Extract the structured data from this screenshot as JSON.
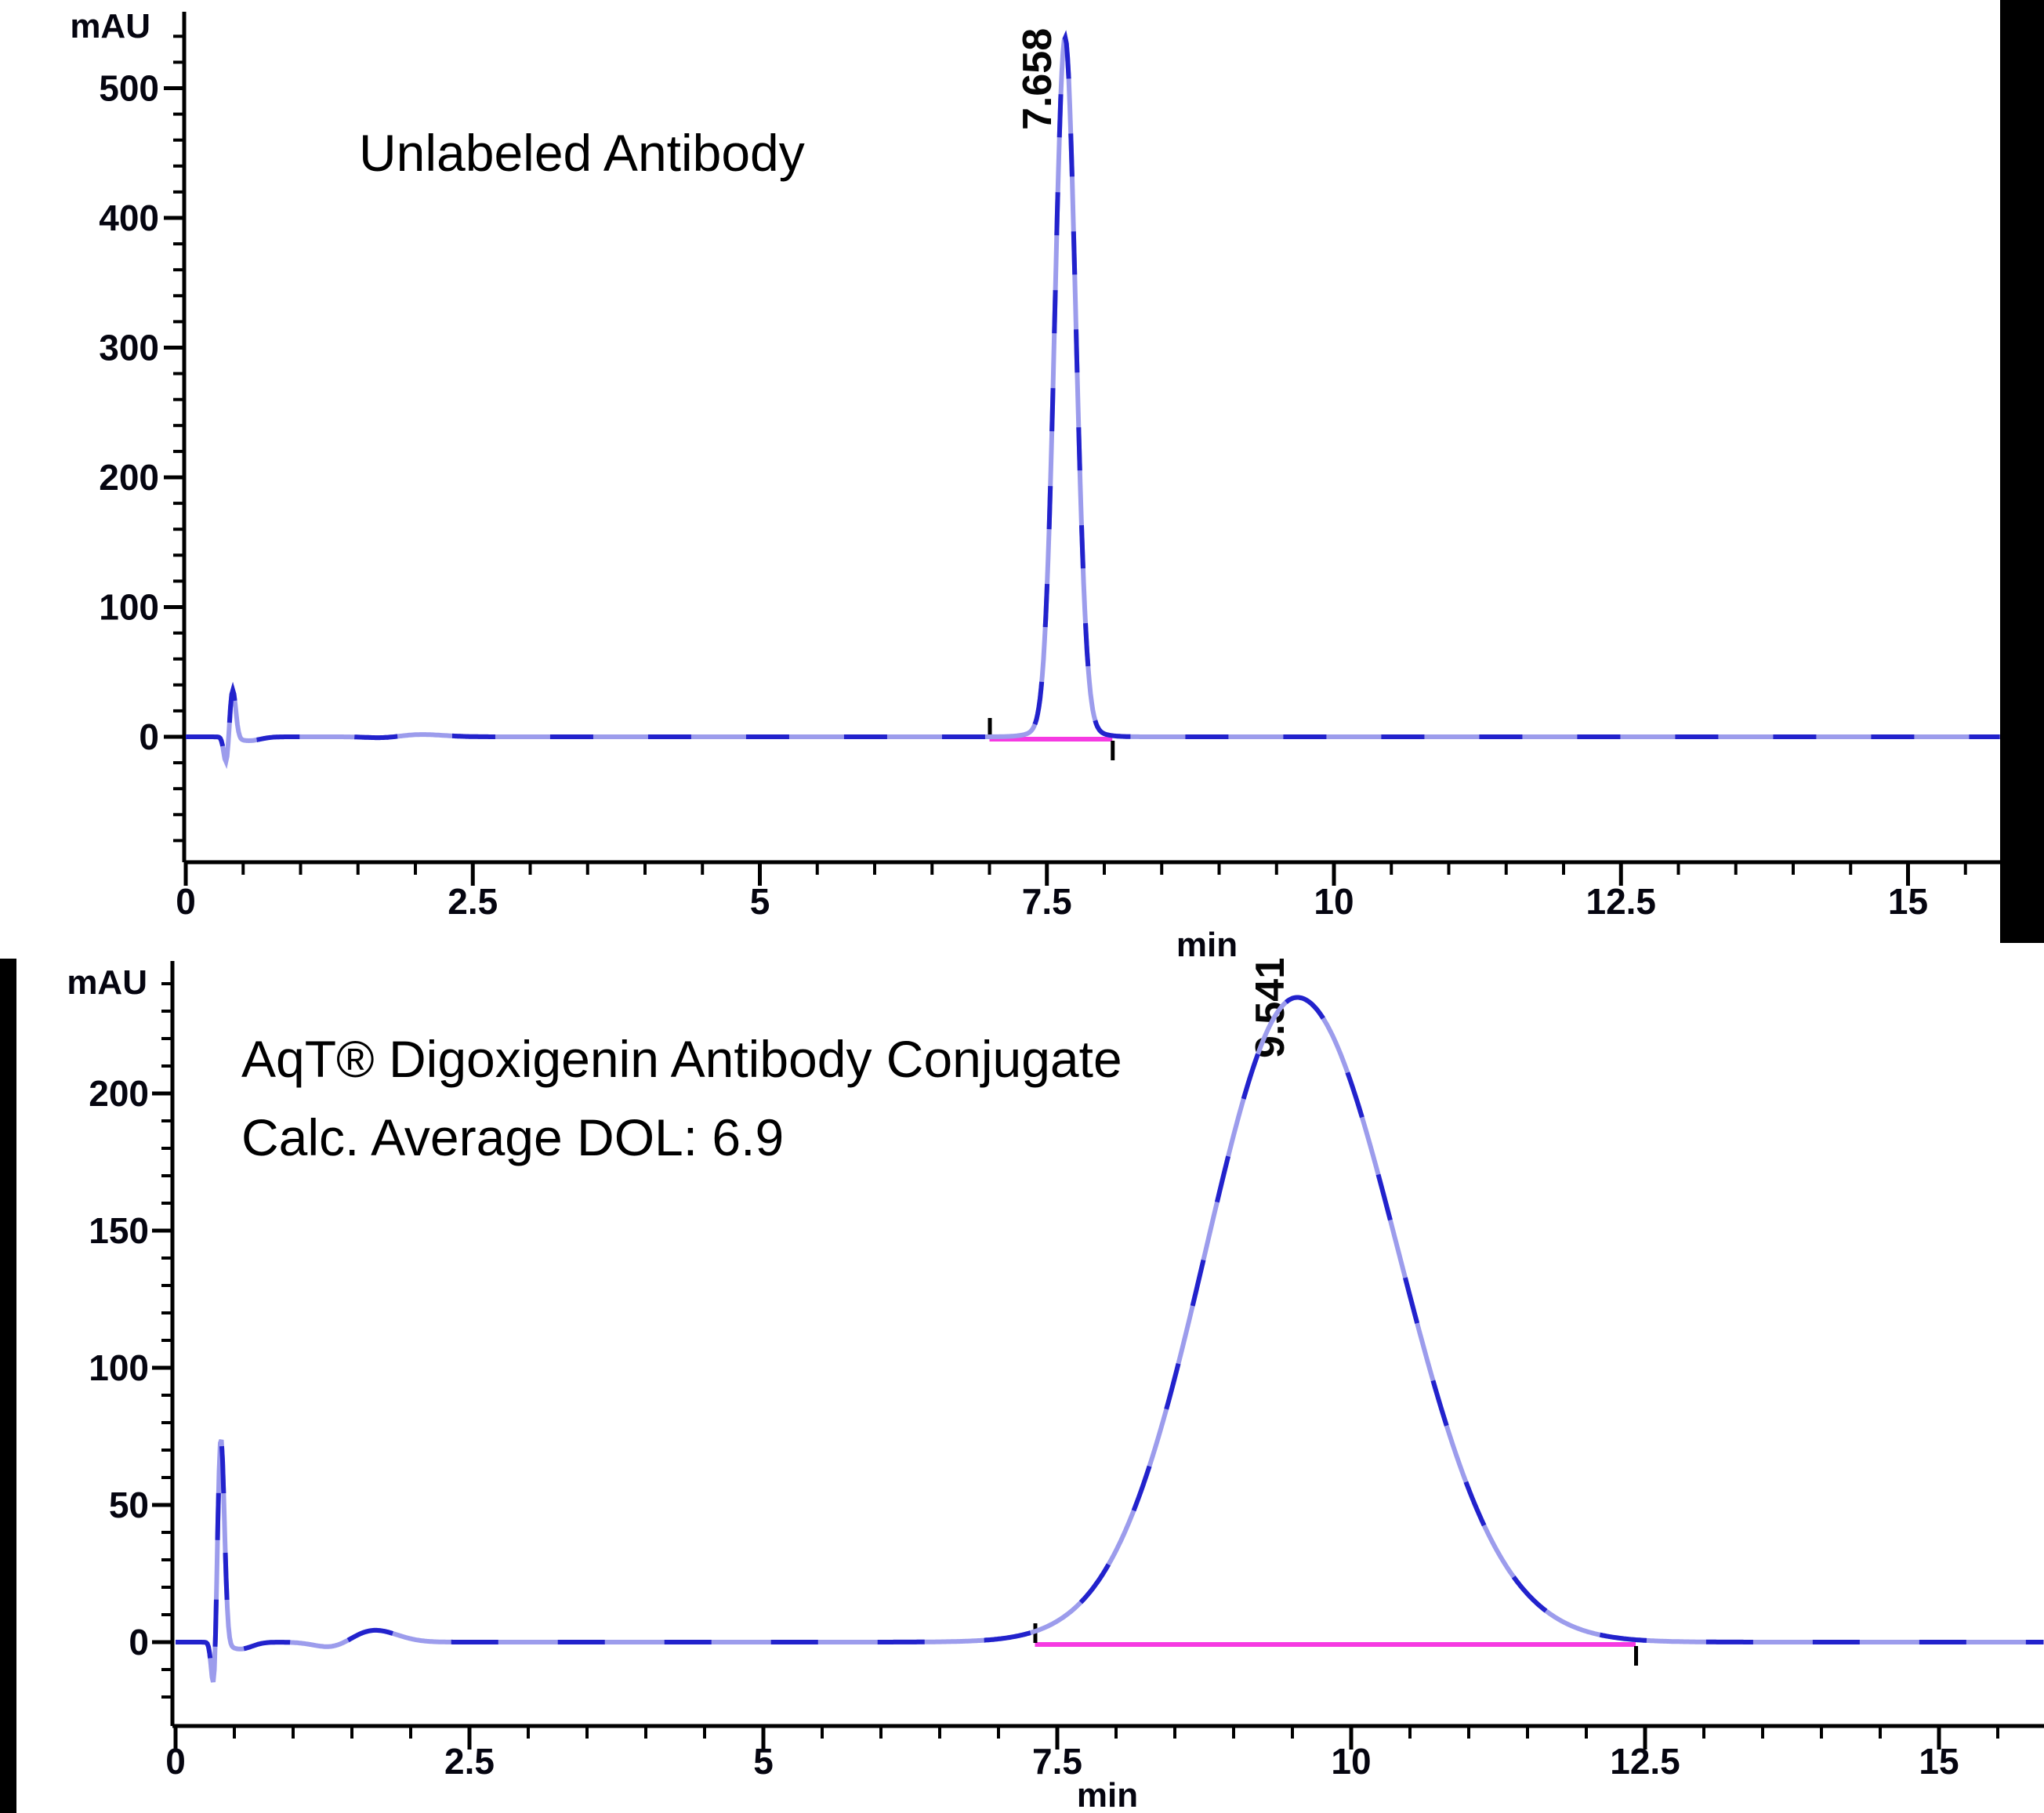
{
  "chart_data": [
    {
      "type": "line",
      "annotations": [
        "Unlabeled Antibody"
      ],
      "ylabel": "mAU",
      "xlabel": "min",
      "x_major_ticks": [
        0,
        2.5,
        5,
        7.5,
        10,
        12.5,
        15
      ],
      "x_major_tick_labels": [
        "0",
        "2.5",
        "5",
        "7.5",
        "10",
        "12.5",
        "15"
      ],
      "x_minor_tick_step_min": 0.5,
      "x_display_max_min": 15.8,
      "y_major_ticks": [
        0,
        100,
        200,
        300,
        400,
        500
      ],
      "y_major_tick_labels": [
        "0",
        "100",
        "200",
        "300",
        "400",
        "500"
      ],
      "y_minor_tick_step_mau": 20,
      "y_display_range_mau": [
        -95,
        558
      ],
      "detected_peak": {
        "label": "7.658",
        "retention_time_min": 7.658,
        "apex_mau": 530
      },
      "integration": {
        "start_min": 7.0,
        "end_min": 8.07,
        "baseline_mau": 0,
        "baseline_color": "#f63ae2",
        "marker_color": "#000000"
      },
      "series": [
        {
          "name": "UV trace",
          "color_dark": "#2222cc",
          "color_light": "#9c9cec",
          "baseline_mau": 0,
          "components": [
            {
              "center": 0.355,
              "sigma": 0.022,
              "amplitude": -23
            },
            {
              "center": 0.408,
              "sigma": 0.027,
              "amplitude": 38
            },
            {
              "center": 0.55,
              "sigma": 0.1,
              "amplitude": -3
            },
            {
              "center": 1.75,
              "sigma": 0.15,
              "amplitude": -1.5
            },
            {
              "center": 2.0,
              "sigma": 0.22,
              "amplitude": 2
            },
            {
              "center": 7.658,
              "sigma_left": 0.088,
              "sigma_right": 0.092,
              "amplitude": 530
            },
            {
              "center": 7.66,
              "sigma": 0.19,
              "amplitude": 9
            }
          ]
        }
      ],
      "key_points_t_mau": [
        [
          0,
          0
        ],
        [
          0.3,
          0
        ],
        [
          0.355,
          -23
        ],
        [
          0.408,
          38
        ],
        [
          0.5,
          2
        ],
        [
          1.0,
          0
        ],
        [
          7.0,
          1
        ],
        [
          7.4,
          15
        ],
        [
          7.57,
          200
        ],
        [
          7.658,
          530
        ],
        [
          7.75,
          200
        ],
        [
          7.9,
          15
        ],
        [
          8.07,
          1
        ],
        [
          9.0,
          0
        ],
        [
          15.8,
          0
        ]
      ]
    },
    {
      "type": "line",
      "annotations": [
        "AqT® Digoxigenin Antibody Conjugate",
        "Calc. Average DOL: 6.9"
      ],
      "ylabel": "mAU",
      "xlabel": "min",
      "x_major_ticks": [
        0,
        2.5,
        5,
        7.5,
        10,
        12.5,
        15
      ],
      "x_major_tick_labels": [
        "0",
        "2.5",
        "5",
        "7.5",
        "10",
        "12.5",
        "15"
      ],
      "x_minor_tick_step_min": 0.5,
      "x_display_max_min": 15.89,
      "y_major_ticks": [
        0,
        50,
        100,
        150,
        200
      ],
      "y_major_tick_labels": [
        "0",
        "50",
        "100",
        "150",
        "200"
      ],
      "y_minor_tick_step_mau": 10,
      "y_display_range_mau": [
        -30,
        246
      ],
      "detected_peak": {
        "label": "9.541",
        "retention_time_min": 9.541,
        "apex_mau": 235
      },
      "integration": {
        "start_min": 7.31,
        "end_min": 12.42,
        "baseline_mau": 0,
        "baseline_color": "#f63ae2",
        "marker_color": "#000000"
      },
      "series": [
        {
          "name": "UV trace",
          "color_dark": "#2222cc",
          "color_light": "#9c9cec",
          "baseline_mau": 0,
          "components": [
            {
              "center": 0.33,
              "sigma": 0.022,
              "amplitude": -24
            },
            {
              "center": 0.385,
              "sigma": 0.03,
              "amplitude": 76
            },
            {
              "center": 0.55,
              "sigma": 0.1,
              "amplitude": -2.5
            },
            {
              "center": 1.35,
              "sigma": 0.15,
              "amplitude": -2.5
            },
            {
              "center": 1.68,
              "sigma": 0.2,
              "amplitude": 4.5
            },
            {
              "center": 9.541,
              "sigma_left": 0.78,
              "sigma_right": 0.86,
              "amplitude": 235
            }
          ]
        }
      ],
      "key_points_t_mau": [
        [
          0,
          0
        ],
        [
          0.3,
          0
        ],
        [
          0.33,
          -24
        ],
        [
          0.385,
          76
        ],
        [
          0.6,
          -2
        ],
        [
          1.35,
          -2.5
        ],
        [
          1.68,
          4.5
        ],
        [
          2.5,
          0
        ],
        [
          7.4,
          8
        ],
        [
          8.5,
          100
        ],
        [
          9.541,
          235
        ],
        [
          10.6,
          100
        ],
        [
          12.0,
          4
        ],
        [
          12.42,
          1
        ],
        [
          15.89,
          0
        ]
      ]
    }
  ]
}
